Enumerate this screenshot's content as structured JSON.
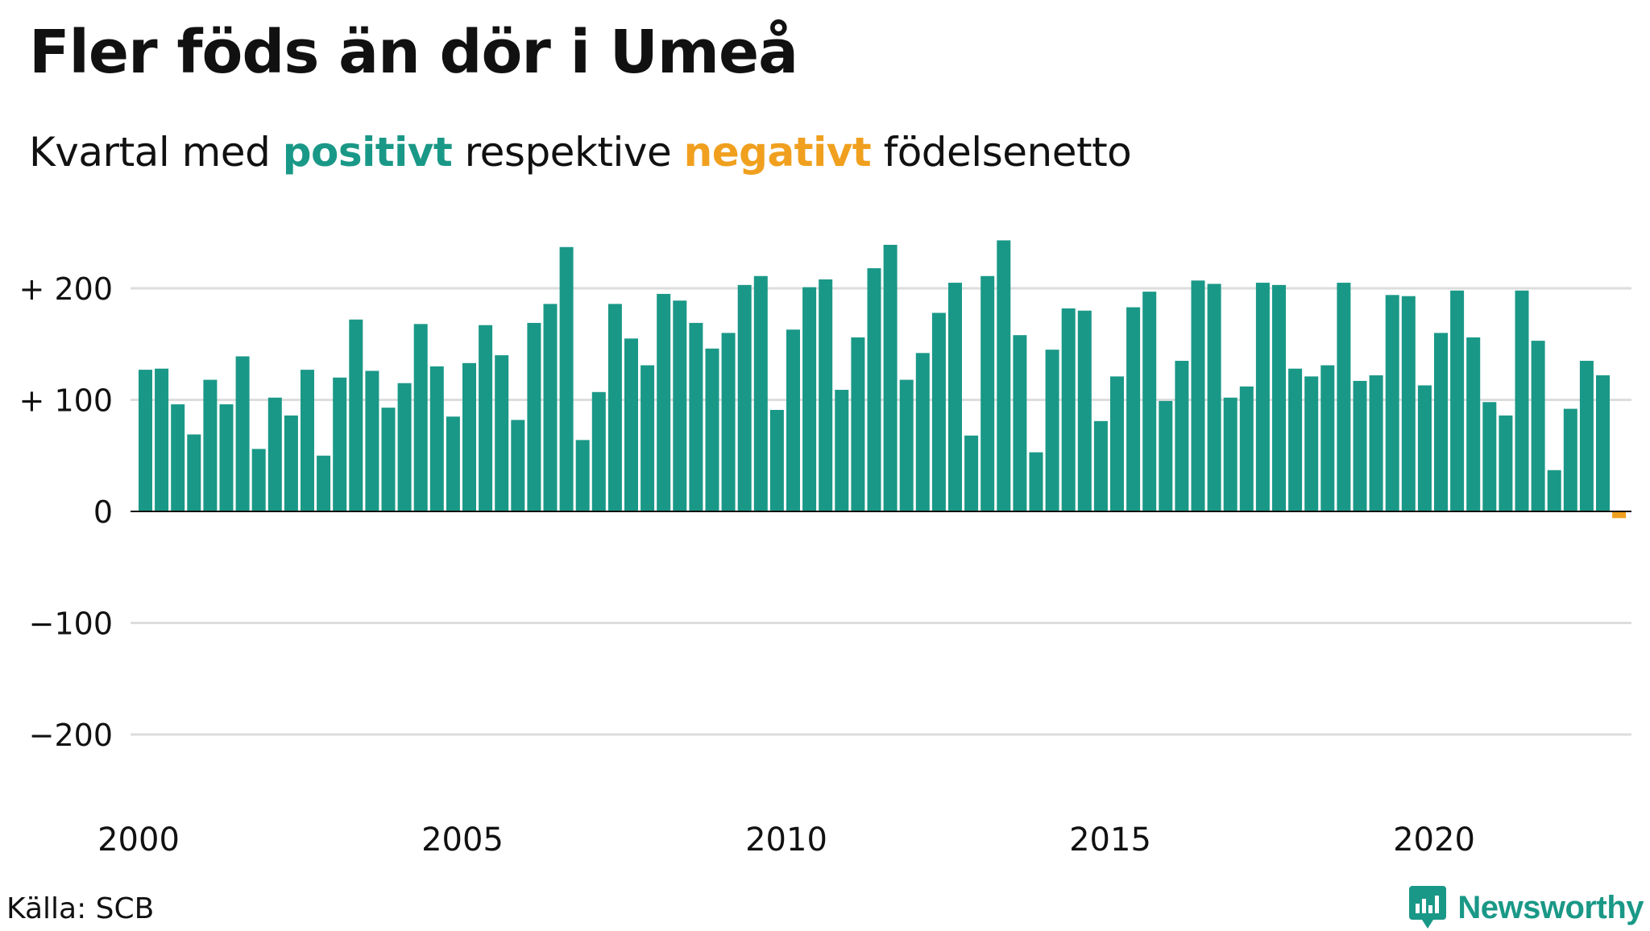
{
  "title": "Fler föds än dör i Umeå",
  "subtitle": {
    "part1": "Kvartal med ",
    "positive": "positivt",
    "part2": " respektive ",
    "negative": "negativt",
    "part3": " födelsenetto"
  },
  "source": "Källa: SCB",
  "brand": "Newsworthy",
  "colors": {
    "positive": "#1a9887",
    "negative": "#f0a01e",
    "grid": "#dddddd",
    "axis": "#111111"
  },
  "chart_data": {
    "type": "bar",
    "title": "Fler föds än dör i Umeå",
    "subtitle": "Kvartal med positivt respektive negativt födelsenetto",
    "xlabel": "",
    "ylabel": "",
    "ylim": [
      -260,
      250
    ],
    "x_start_year": 2000,
    "quarters_per_year": 4,
    "x_tick_labels": [
      "2000",
      "2005",
      "2010",
      "2015",
      "2020"
    ],
    "y_ticks": [
      200,
      100,
      0,
      -100,
      -200
    ],
    "y_tick_labels": [
      "+ 200",
      "+ 100",
      "0",
      "−100",
      "−200"
    ],
    "grid": true,
    "values": [
      127,
      128,
      96,
      69,
      118,
      96,
      139,
      56,
      102,
      86,
      127,
      50,
      120,
      172,
      126,
      93,
      115,
      168,
      130,
      85,
      133,
      167,
      140,
      82,
      169,
      186,
      237,
      64,
      107,
      186,
      155,
      131,
      195,
      189,
      169,
      146,
      160,
      203,
      211,
      91,
      163,
      201,
      208,
      109,
      156,
      218,
      239,
      118,
      142,
      178,
      205,
      68,
      211,
      243,
      158,
      53,
      145,
      182,
      180,
      81,
      121,
      183,
      197,
      99,
      135,
      207,
      204,
      102,
      112,
      205,
      203,
      128,
      121,
      131,
      205,
      117,
      122,
      194,
      193,
      113,
      160,
      198,
      156,
      98,
      86,
      198,
      153,
      37,
      92,
      135,
      122,
      -6
    ]
  }
}
